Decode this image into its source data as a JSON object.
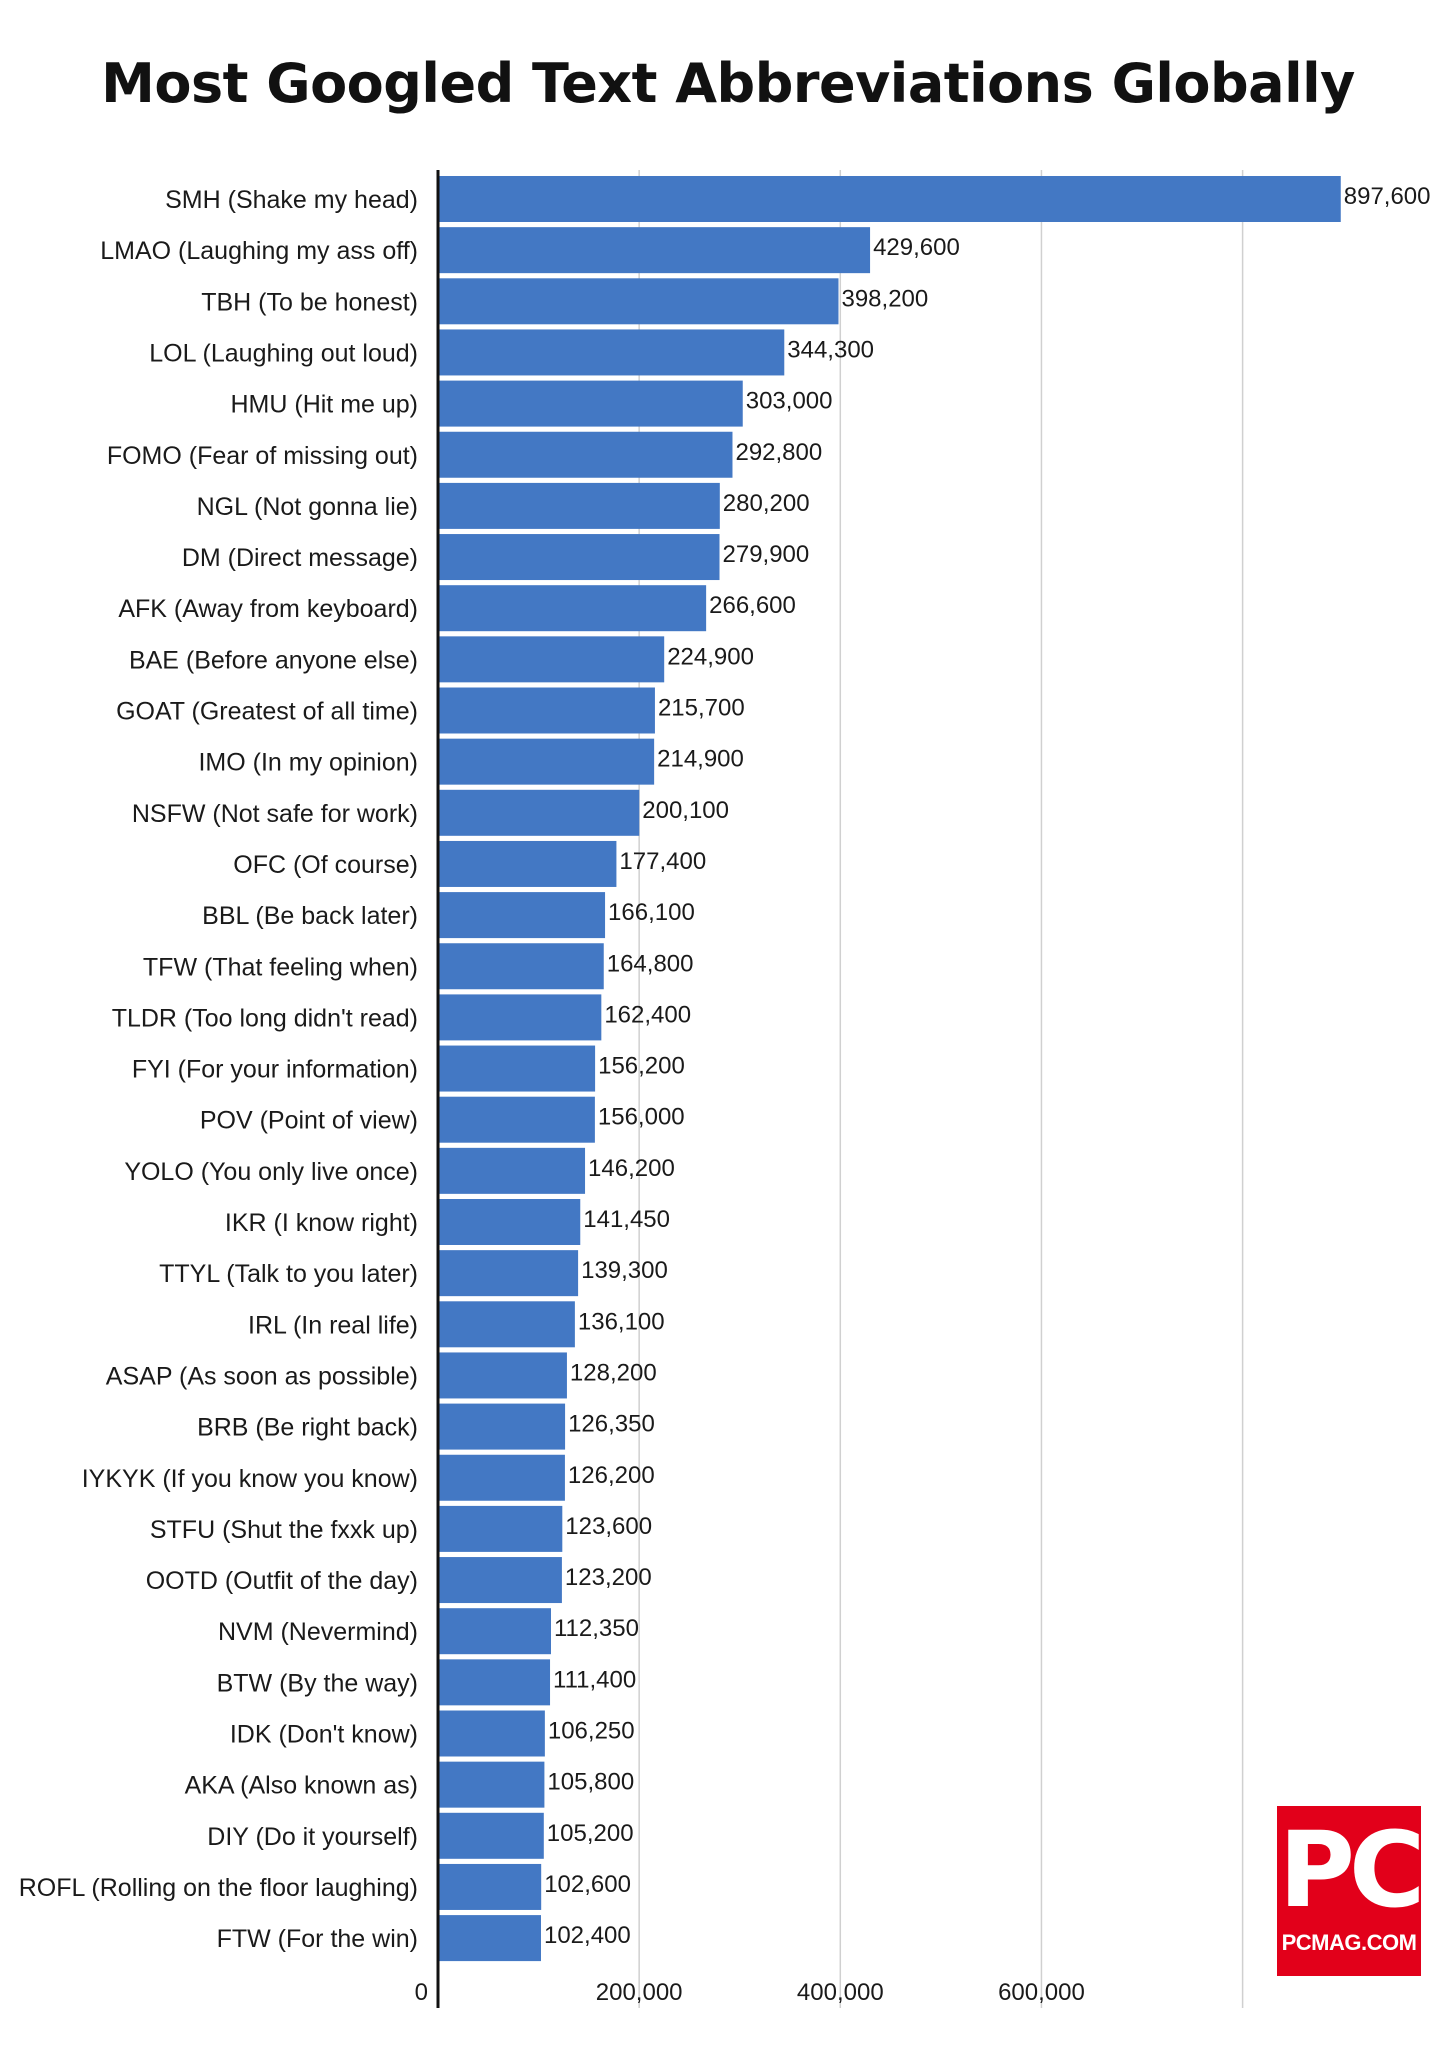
{
  "chart_data": {
    "type": "bar",
    "orientation": "horizontal",
    "title": "Most Googled Text Abbreviations Globally",
    "xlabel": "",
    "ylabel": "",
    "xlim": [
      0,
      900000
    ],
    "xticks": [
      0,
      200000,
      400000,
      600000
    ],
    "xtick_labels": [
      "0",
      "200,000",
      "400,000",
      "600,000"
    ],
    "grid": true,
    "bar_color": "#4378c4",
    "categories": [
      "SMH (Shake my head)",
      "LMAO (Laughing my ass off)",
      "TBH (To be honest)",
      "LOL (Laughing out loud)",
      "HMU (Hit me up)",
      "FOMO (Fear of missing out)",
      "NGL (Not gonna lie)",
      "DM (Direct message)",
      "AFK (Away from keyboard)",
      "BAE (Before anyone else)",
      "GOAT (Greatest of all time)",
      "IMO (In my opinion)",
      "NSFW (Not safe for work)",
      "OFC (Of course)",
      "BBL (Be back later)",
      "TFW (That feeling when)",
      "TLDR (Too long didn't read)",
      "FYI (For your information)",
      "POV (Point of view)",
      "YOLO (You only live once)",
      "IKR (I know right)",
      "TTYL (Talk to you later)",
      "IRL (In real life)",
      "ASAP (As soon as possible)",
      "BRB (Be right back)",
      "IYKYK (If you know you know)",
      "STFU (Shut the fxxk up)",
      "OOTD (Outfit of the day)",
      "NVM (Nevermind)",
      "BTW (By the way)",
      "IDK (Don't know)",
      "AKA (Also known as)",
      "DIY (Do it yourself)",
      "ROFL (Rolling on the floor laughing)",
      "FTW (For the win)"
    ],
    "values": [
      897600,
      429600,
      398200,
      344300,
      303000,
      292800,
      280200,
      279900,
      266600,
      224900,
      215700,
      214900,
      200100,
      177400,
      166100,
      164800,
      162400,
      156200,
      156000,
      146200,
      141450,
      139300,
      136100,
      128200,
      126350,
      126200,
      123600,
      123200,
      112350,
      111400,
      106250,
      105800,
      105200,
      102600,
      102400
    ],
    "value_labels": [
      "897,600",
      "429,600",
      "398,200",
      "344,300",
      "303,000",
      "292,800",
      "280,200",
      "279,900",
      "266,600",
      "224,900",
      "215,700",
      "214,900",
      "200,100",
      "177,400",
      "166,100",
      "164,800",
      "162,400",
      "156,200",
      "156,000",
      "146,200",
      "141,450",
      "139,300",
      "136,100",
      "128,200",
      "126,350",
      "126,200",
      "123,600",
      "123,200",
      "112,350",
      "111,400",
      "106,250",
      "105,800",
      "105,200",
      "102,600",
      "102,400"
    ]
  },
  "logo": {
    "big": "PC",
    "small": "PCMAG.COM"
  }
}
